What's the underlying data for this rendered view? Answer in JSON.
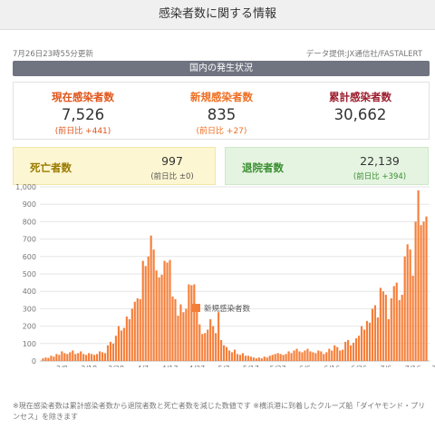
{
  "header": {
    "title": "感染者数に関する情報"
  },
  "meta": {
    "updated": "7月26日23時55分更新",
    "source": "データ提供:JX通信社/FASTALERT"
  },
  "section": {
    "title": "国内の発生状況"
  },
  "stats": [
    {
      "label": "現在感染者数",
      "value": "7,526",
      "diff": "(前日比 +441)"
    },
    {
      "label": "新規感染者数",
      "value": "835",
      "diff": "(前日比 +27)"
    },
    {
      "label": "累計感染者数",
      "value": "30,662",
      "diff": ""
    }
  ],
  "deaths": {
    "label": "死亡者数",
    "value": "997",
    "diff": "(前日比 ±0)"
  },
  "recovered": {
    "label": "退院者数",
    "value": "22,139",
    "diff": "(前日比 +394)"
  },
  "note": "※現在感染者数は累計感染者数から退院者数と死亡者数を減じた数値です ※横浜港に到着したクルーズ船「ダイヤモンド・プリンセス」を除きます",
  "colors": {
    "bar": "#f57f3a",
    "grid": "#e6e6e6",
    "axis": "#bbbbbb"
  },
  "chart_data": {
    "type": "bar",
    "title": "",
    "xlabel": "",
    "ylabel": "",
    "ylim": [
      0,
      1000
    ],
    "yticks": [
      0,
      100,
      200,
      300,
      400,
      500,
      600,
      700,
      800,
      900,
      1000
    ],
    "ytick_labels": [
      "0",
      "100",
      "200",
      "300",
      "400",
      "500",
      "600",
      "700",
      "800",
      "900",
      "1,000"
    ],
    "xtick_labels": [
      "3/8",
      "3/18",
      "3/28",
      "4/7",
      "4/17",
      "4/27",
      "5/7",
      "5/17",
      "5/27",
      "6/6",
      "6/16",
      "6/26",
      "7/6",
      "7/16",
      "7/26"
    ],
    "xtick_index": [
      7,
      17,
      27,
      37,
      47,
      57,
      67,
      77,
      87,
      97,
      107,
      117,
      127,
      137,
      147
    ],
    "legend_position": "bottom",
    "series": [
      {
        "name": "新規感染者数",
        "values": [
          15,
          20,
          18,
          30,
          25,
          40,
          35,
          55,
          45,
          40,
          50,
          60,
          40,
          45,
          55,
          40,
          35,
          45,
          40,
          35,
          40,
          55,
          50,
          45,
          90,
          110,
          100,
          145,
          200,
          175,
          190,
          255,
          240,
          300,
          340,
          360,
          355,
          575,
          545,
          600,
          720,
          640,
          520,
          480,
          495,
          575,
          565,
          580,
          370,
          355,
          260,
          325,
          280,
          300,
          440,
          435,
          440,
          300,
          210,
          155,
          160,
          180,
          240,
          200,
          160,
          280,
          120,
          90,
          80,
          60,
          50,
          65,
          40,
          35,
          45,
          30,
          30,
          25,
          20,
          15,
          20,
          15,
          25,
          20,
          30,
          35,
          40,
          45,
          40,
          35,
          40,
          55,
          45,
          60,
          70,
          55,
          50,
          60,
          70,
          55,
          50,
          45,
          60,
          55,
          40,
          50,
          70,
          60,
          90,
          80,
          60,
          65,
          110,
          120,
          90,
          105,
          130,
          145,
          200,
          180,
          230,
          220,
          300,
          320,
          250,
          420,
          400,
          380,
          240,
          360,
          430,
          450,
          350,
          380,
          600,
          670,
          640,
          490,
          800,
          980,
          780,
          800,
          830
        ]
      }
    ]
  }
}
